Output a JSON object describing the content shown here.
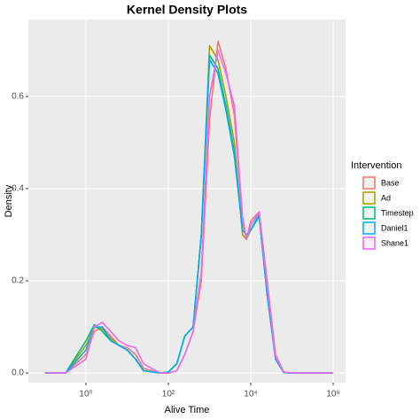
{
  "chart_data": {
    "type": "line",
    "title": "Kernel Density Plots",
    "x_label": "Alive Time",
    "y_label": "Density",
    "x_log": true,
    "grid": true,
    "legend_title": "Intervention",
    "legend_position": "right",
    "xlim": [
      0.04,
      2000000
    ],
    "ylim": [
      -0.021,
      0.767
    ],
    "xticks": [
      {
        "value": 1,
        "label": "10⁰"
      },
      {
        "value": 100,
        "label": "10²"
      },
      {
        "value": 10000,
        "label": "10⁴"
      },
      {
        "value": 1000000,
        "label": "10⁶"
      }
    ],
    "yticks": [
      {
        "value": 0,
        "label": "0.0"
      },
      0.2,
      0.4,
      0.6
    ],
    "x": [
      0.1,
      0.32,
      1,
      1.6,
      2.5,
      4,
      6.3,
      10,
      16,
      25,
      63,
      100,
      160,
      250,
      400,
      630,
      1000,
      1600,
      2500,
      4000,
      6300,
      7900,
      10000,
      16000,
      25000,
      40000,
      63000,
      100000,
      1000000
    ],
    "series": [
      {
        "name": "Base",
        "color": "#F8766D",
        "values": [
          0,
          0,
          0.04,
          0.09,
          0.1,
          0.08,
          0.06,
          0.055,
          0.04,
          0.01,
          0,
          0,
          0.005,
          0.04,
          0.09,
          0.2,
          0.55,
          0.72,
          0.66,
          0.56,
          0.33,
          0.29,
          0.33,
          0.35,
          0.2,
          0.04,
          0.002,
          0,
          0
        ]
      },
      {
        "name": "Ad",
        "color": "#A3A500",
        "values": [
          0,
          0,
          0.06,
          0.1,
          0.095,
          0.075,
          0.06,
          0.05,
          0.03,
          0.005,
          0,
          0.002,
          0.02,
          0.08,
          0.1,
          0.3,
          0.71,
          0.68,
          0.6,
          0.5,
          0.3,
          0.29,
          0.31,
          0.34,
          0.17,
          0.03,
          0.001,
          0,
          0
        ]
      },
      {
        "name": "Timestep",
        "color": "#00BF7D",
        "values": [
          0,
          0,
          0.07,
          0.105,
          0.09,
          0.07,
          0.06,
          0.05,
          0.03,
          0.005,
          0,
          0.002,
          0.02,
          0.08,
          0.1,
          0.3,
          0.69,
          0.66,
          0.58,
          0.48,
          0.31,
          0.3,
          0.31,
          0.34,
          0.17,
          0.03,
          0.001,
          0,
          0
        ]
      },
      {
        "name": "Daniel1",
        "color": "#00B0F6",
        "values": [
          0,
          0,
          0.05,
          0.1,
          0.1,
          0.07,
          0.06,
          0.05,
          0.03,
          0.005,
          0,
          0.002,
          0.02,
          0.08,
          0.1,
          0.3,
          0.68,
          0.65,
          0.57,
          0.47,
          0.31,
          0.3,
          0.31,
          0.345,
          0.17,
          0.03,
          0.001,
          0,
          0
        ]
      },
      {
        "name": "Shane1",
        "color": "#E76BF3",
        "values": [
          0,
          0,
          0.03,
          0.1,
          0.11,
          0.09,
          0.07,
          0.06,
          0.055,
          0.02,
          0,
          0,
          0.005,
          0.04,
          0.09,
          0.22,
          0.6,
          0.7,
          0.65,
          0.58,
          0.34,
          0.29,
          0.32,
          0.35,
          0.19,
          0.035,
          0.002,
          0,
          0
        ]
      }
    ]
  }
}
